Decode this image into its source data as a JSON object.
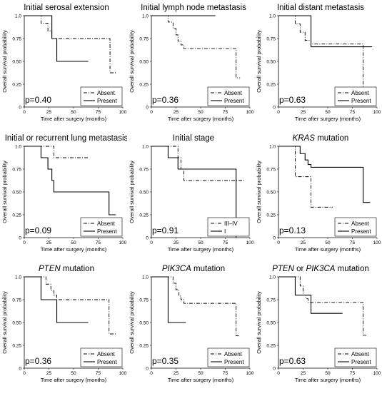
{
  "figure": {
    "xlabel": "Time after surgery (months)",
    "ylabel": "Overall survival probability",
    "xticks": [
      "0",
      "25",
      "50",
      "75",
      "100"
    ],
    "yticks": [
      "0",
      "0.25",
      "0.50",
      "0.75",
      "1.0"
    ]
  },
  "chart_data": [
    {
      "type": "line",
      "title_parts": [
        {
          "text": "Initial serosal extension",
          "italic": false
        }
      ],
      "p_value": "p=0.40",
      "xlim": [
        0,
        100
      ],
      "ylim": [
        0,
        1
      ],
      "legend_position": "bottom-right",
      "series": [
        {
          "name": "Absent",
          "style": "dashdot",
          "x": [
            0,
            17,
            17,
            24,
            24,
            28,
            28,
            30,
            30,
            87,
            87,
            93
          ],
          "y": [
            1.0,
            1.0,
            0.917,
            0.917,
            0.833,
            0.833,
            0.75,
            0.75,
            0.75,
            0.75,
            0.375,
            0.375
          ]
        },
        {
          "name": "Present",
          "style": "solid",
          "x": [
            0,
            28,
            28,
            33,
            33,
            65
          ],
          "y": [
            1.0,
            1.0,
            0.75,
            0.75,
            0.5,
            0.5
          ]
        }
      ]
    },
    {
      "type": "line",
      "title_parts": [
        {
          "text": "Initial lymph node metastasis",
          "italic": false
        }
      ],
      "p_value": "p=0.36",
      "xlim": [
        0,
        100
      ],
      "ylim": [
        0,
        1
      ],
      "legend_position": "bottom-right",
      "series": [
        {
          "name": "Absent",
          "style": "dashdot",
          "x": [
            0,
            17,
            17,
            22,
            22,
            25,
            25,
            27,
            27,
            30,
            30,
            33,
            33,
            86,
            86,
            90
          ],
          "y": [
            1.0,
            1.0,
            0.93,
            0.93,
            0.86,
            0.86,
            0.79,
            0.79,
            0.72,
            0.72,
            0.68,
            0.68,
            0.64,
            0.64,
            0.32,
            0.32
          ]
        },
        {
          "name": "Present",
          "style": "solid",
          "x": [
            0,
            65
          ],
          "y": [
            1.0,
            1.0
          ]
        }
      ]
    },
    {
      "type": "line",
      "title_parts": [
        {
          "text": "Initial distant metastasis",
          "italic": false
        }
      ],
      "p_value": "p=0.63",
      "xlim": [
        0,
        100
      ],
      "ylim": [
        0,
        1
      ],
      "legend_position": "bottom-right",
      "series": [
        {
          "name": "Absent",
          "style": "dashdot",
          "x": [
            0,
            17,
            17,
            22,
            22,
            27,
            27,
            33,
            33,
            86,
            86,
            86
          ],
          "y": [
            1.0,
            1.0,
            0.91,
            0.91,
            0.82,
            0.82,
            0.73,
            0.73,
            0.69,
            0.69,
            0.0,
            0.0
          ]
        },
        {
          "name": "Present",
          "style": "solid",
          "x": [
            0,
            33,
            33,
            95
          ],
          "y": [
            1.0,
            1.0,
            0.66,
            0.66
          ]
        }
      ]
    },
    {
      "type": "line",
      "title_parts": [
        {
          "text": "Initial or recurrent lung metastasis",
          "italic": false
        }
      ],
      "p_value": "p=0.09",
      "xlim": [
        0,
        100
      ],
      "ylim": [
        0,
        1
      ],
      "legend_position": "bottom-right",
      "series": [
        {
          "name": "Absent",
          "style": "dashdot",
          "x": [
            0,
            30,
            30,
            65
          ],
          "y": [
            1.0,
            1.0,
            0.875,
            0.875
          ]
        },
        {
          "name": "Present",
          "style": "solid",
          "x": [
            0,
            17,
            17,
            24,
            24,
            28,
            28,
            30,
            30,
            86,
            86,
            93
          ],
          "y": [
            1.0,
            1.0,
            0.875,
            0.875,
            0.75,
            0.75,
            0.625,
            0.625,
            0.5,
            0.5,
            0.25,
            0.25
          ]
        }
      ]
    },
    {
      "type": "line",
      "title_parts": [
        {
          "text": "Initial stage",
          "italic": false
        }
      ],
      "p_value": "p=0.91",
      "xlim": [
        0,
        100
      ],
      "ylim": [
        0,
        1
      ],
      "legend_position": "bottom-right",
      "series": [
        {
          "name": "III–IV",
          "style": "dashdot",
          "x": [
            0,
            27,
            27,
            30,
            30,
            33,
            33,
            95
          ],
          "y": [
            1.0,
            1.0,
            0.875,
            0.875,
            0.75,
            0.75,
            0.625,
            0.625
          ]
        },
        {
          "name": "I",
          "style": "solid",
          "x": [
            0,
            17,
            17,
            27,
            27,
            86,
            86
          ],
          "y": [
            1.0,
            1.0,
            0.875,
            0.875,
            0.75,
            0.75,
            0.0
          ]
        }
      ]
    },
    {
      "type": "line",
      "title_parts": [
        {
          "text": "KRAS",
          "italic": true
        },
        {
          "text": " mutation",
          "italic": false
        }
      ],
      "p_value": "p=0.13",
      "xlim": [
        0,
        100
      ],
      "ylim": [
        0,
        1
      ],
      "legend_position": "bottom-right",
      "series": [
        {
          "name": "Absent",
          "style": "dashdot",
          "x": [
            0,
            17,
            17,
            33,
            33,
            55
          ],
          "y": [
            1.0,
            1.0,
            0.667,
            0.667,
            0.333,
            0.333
          ]
        },
        {
          "name": "Present",
          "style": "solid",
          "x": [
            0,
            22,
            22,
            27,
            27,
            30,
            30,
            33,
            33,
            86,
            86,
            93
          ],
          "y": [
            1.0,
            1.0,
            0.92,
            0.92,
            0.85,
            0.85,
            0.8,
            0.8,
            0.77,
            0.77,
            0.385,
            0.385
          ]
        }
      ]
    },
    {
      "type": "line",
      "title_parts": [
        {
          "text": "PTEN",
          "italic": true
        },
        {
          "text": " mutation",
          "italic": false
        }
      ],
      "p_value": "p=0.36",
      "xlim": [
        0,
        100
      ],
      "ylim": [
        0,
        1
      ],
      "legend_position": "bottom-right",
      "series": [
        {
          "name": "Absent",
          "style": "dashdot",
          "x": [
            0,
            22,
            22,
            27,
            27,
            30,
            30,
            33,
            33,
            86,
            86,
            93
          ],
          "y": [
            1.0,
            1.0,
            0.92,
            0.92,
            0.85,
            0.85,
            0.8,
            0.8,
            0.75,
            0.75,
            0.375,
            0.375
          ]
        },
        {
          "name": "Present",
          "style": "solid",
          "x": [
            0,
            17,
            17,
            33,
            33,
            65
          ],
          "y": [
            1.0,
            1.0,
            0.75,
            0.75,
            0.5,
            0.5
          ]
        }
      ]
    },
    {
      "type": "line",
      "title_parts": [
        {
          "text": "PIK3CA",
          "italic": true
        },
        {
          "text": " mutation",
          "italic": false
        }
      ],
      "p_value": "p=0.35",
      "xlim": [
        0,
        100
      ],
      "ylim": [
        0,
        1
      ],
      "legend_position": "bottom-right",
      "series": [
        {
          "name": "Absent",
          "style": "dashdot",
          "x": [
            0,
            22,
            22,
            25,
            25,
            28,
            28,
            30,
            30,
            33,
            33,
            86,
            86,
            90
          ],
          "y": [
            1.0,
            1.0,
            0.93,
            0.93,
            0.86,
            0.86,
            0.79,
            0.79,
            0.75,
            0.75,
            0.71,
            0.71,
            0.355,
            0.355
          ]
        },
        {
          "name": "Present",
          "style": "solid",
          "x": [
            0,
            17,
            17,
            35
          ],
          "y": [
            1.0,
            1.0,
            0.5,
            0.5
          ]
        }
      ]
    },
    {
      "type": "line",
      "title_parts": [
        {
          "text": "PTEN",
          "italic": true
        },
        {
          "text": " or ",
          "italic": false
        },
        {
          "text": "PIK3CA",
          "italic": true
        },
        {
          "text": " mutation",
          "italic": false
        }
      ],
      "p_value": "p=0.63",
      "xlim": [
        0,
        100
      ],
      "ylim": [
        0,
        1
      ],
      "legend_position": "bottom-right",
      "series": [
        {
          "name": "Absent",
          "style": "dashdot",
          "x": [
            0,
            22,
            22,
            25,
            25,
            28,
            28,
            30,
            30,
            86,
            86,
            90
          ],
          "y": [
            1.0,
            1.0,
            0.9,
            0.9,
            0.8,
            0.8,
            0.76,
            0.76,
            0.72,
            0.72,
            0.36,
            0.36
          ]
        },
        {
          "name": "Present",
          "style": "solid",
          "x": [
            0,
            17,
            17,
            33,
            33,
            65
          ],
          "y": [
            1.0,
            1.0,
            0.8,
            0.8,
            0.6,
            0.6
          ]
        }
      ]
    }
  ]
}
